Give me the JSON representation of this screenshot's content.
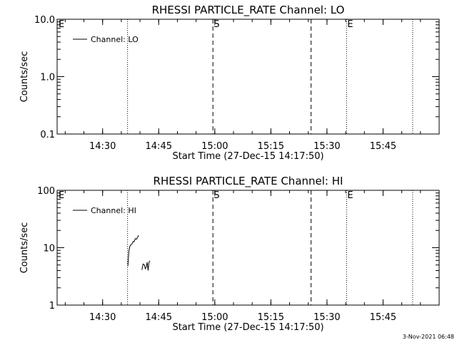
{
  "chart_data": [
    {
      "type": "line",
      "title": "RHESSI PARTICLE_RATE Channel: LO",
      "xlabel": "Start Time (27-Dec-15 14:17:50)",
      "ylabel": "Counts/sec",
      "y_scale": "log",
      "ylim": [
        0.1,
        10.0
      ],
      "y_ticks": [
        {
          "value": 0.1,
          "label": "0.1"
        },
        {
          "value": 1.0,
          "label": "1.0"
        },
        {
          "value": 10.0,
          "label": "10.0"
        }
      ],
      "xlim": [
        "14:17:50",
        "16:00:00"
      ],
      "x_ticks": [
        "14:30",
        "14:45",
        "15:00",
        "15:15",
        "15:30",
        "15:45"
      ],
      "grid": false,
      "legend_position": "top-left",
      "legend": [
        "Channel: LO"
      ],
      "series": [
        {
          "name": "Channel: LO",
          "x": [],
          "y": []
        }
      ],
      "vertical_markers": [
        {
          "time": "14:36:40",
          "style": "dotted",
          "label": ""
        },
        {
          "time": "14:59:30",
          "style": "dashed",
          "label": "S"
        },
        {
          "time": "15:25:45",
          "style": "dashed",
          "label": ""
        },
        {
          "time": "15:35:15",
          "style": "dotted",
          "label": "E"
        },
        {
          "time": "15:52:55",
          "style": "dotted",
          "label": ""
        }
      ],
      "corner_label": "E"
    },
    {
      "type": "line",
      "title": "RHESSI PARTICLE_RATE Channel: HI",
      "xlabel": "Start Time (27-Dec-15 14:17:50)",
      "ylabel": "Counts/sec",
      "y_scale": "log",
      "ylim": [
        1,
        100
      ],
      "y_ticks": [
        {
          "value": 1,
          "label": "1"
        },
        {
          "value": 10,
          "label": "10"
        },
        {
          "value": 100,
          "label": "100"
        }
      ],
      "xlim": [
        "14:17:50",
        "16:00:00"
      ],
      "x_ticks": [
        "14:30",
        "14:45",
        "15:00",
        "15:15",
        "15:30",
        "15:45"
      ],
      "grid": false,
      "legend_position": "top-left",
      "legend": [
        "Channel: HI"
      ],
      "series": [
        {
          "name": "Channel: HI",
          "segments": [
            {
              "x": [
                "14:36:45",
                "14:37:00",
                "14:37:15",
                "14:37:35",
                "14:37:55",
                "14:38:10",
                "14:38:25",
                "14:38:45",
                "14:39:05",
                "14:39:25",
                "14:39:40"
              ],
              "y": [
                4.8,
                8.5,
                10.5,
                11.3,
                11.8,
                12.9,
                12.7,
                14.4,
                14.1,
                15.5,
                16.5
              ]
            },
            {
              "x": [
                "14:40:30",
                "14:40:50",
                "14:41:10",
                "14:41:25",
                "14:41:40",
                "14:41:55",
                "14:42:10",
                "14:42:25",
                "14:42:40"
              ],
              "y": [
                4.1,
                5.2,
                5.0,
                4.3,
                4.6,
                5.6,
                4.0,
                5.6,
                5.9
              ]
            }
          ]
        }
      ],
      "vertical_markers": [
        {
          "time": "14:36:40",
          "style": "dotted",
          "label": ""
        },
        {
          "time": "14:59:30",
          "style": "dashed",
          "label": "S"
        },
        {
          "time": "15:25:45",
          "style": "dashed",
          "label": ""
        },
        {
          "time": "15:35:15",
          "style": "dotted",
          "label": "E"
        },
        {
          "time": "15:52:55",
          "style": "dotted",
          "label": ""
        }
      ],
      "corner_label": "E"
    }
  ],
  "footer": {
    "timestamp": "3-Nov-2021 06:48"
  }
}
